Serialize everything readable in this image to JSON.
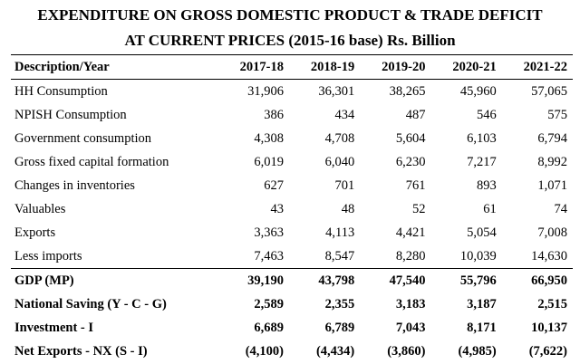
{
  "title_line1": "EXPENDITURE ON GROSS DOMESTIC PRODUCT & TRADE DEFICIT",
  "title_line2": "AT CURRENT PRICES (2015-16 base) Rs. Billion",
  "header": {
    "description": "Description/Year",
    "years": [
      "2017-18",
      "2018-19",
      "2019-20",
      "2020-21",
      "2021-22"
    ]
  },
  "rows": [
    {
      "label": "HH Consumption",
      "values": [
        "31,906",
        "36,301",
        "38,265",
        "45,960",
        "57,065"
      ]
    },
    {
      "label": "NPISH Consumption",
      "values": [
        "386",
        "434",
        "487",
        "546",
        "575"
      ]
    },
    {
      "label": "Government consumption",
      "values": [
        "4,308",
        "4,708",
        "5,604",
        "6,103",
        "6,794"
      ]
    },
    {
      "label": "Gross fixed capital formation",
      "values": [
        "6,019",
        "6,040",
        "6,230",
        "7,217",
        "8,992"
      ]
    },
    {
      "label": "Changes in inventories",
      "values": [
        "627",
        "701",
        "761",
        "893",
        "1,071"
      ]
    },
    {
      "label": "Valuables",
      "values": [
        "43",
        "48",
        "52",
        "61",
        "74"
      ]
    },
    {
      "label": "Exports",
      "values": [
        "3,363",
        "4,113",
        "4,421",
        "5,054",
        "7,008"
      ]
    },
    {
      "label": "Less imports",
      "values": [
        "7,463",
        "8,547",
        "8,280",
        "10,039",
        "14,630"
      ]
    }
  ],
  "summary_rows": [
    {
      "label": "GDP (MP)",
      "values": [
        "39,190",
        "43,798",
        "47,540",
        "55,796",
        "66,950"
      ]
    },
    {
      "label": "National Saving (Y - C - G)",
      "values": [
        "2,589",
        "2,355",
        "3,183",
        "3,187",
        "2,515"
      ]
    },
    {
      "label": "Investment - I",
      "values": [
        "6,689",
        "6,789",
        "7,043",
        "8,171",
        "10,137"
      ]
    },
    {
      "label": "Net Exports - NX (S - I)",
      "values": [
        "(4,100)",
        "(4,434)",
        "(3,860)",
        "(4,985)",
        "(7,622)"
      ]
    }
  ]
}
